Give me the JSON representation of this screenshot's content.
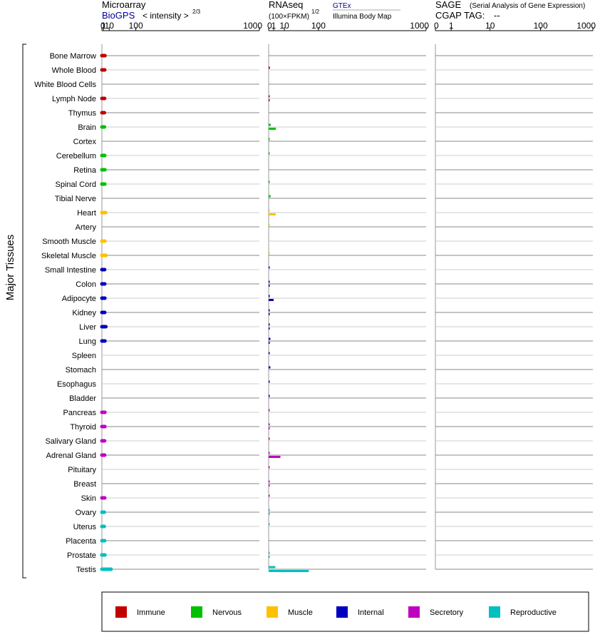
{
  "panels": {
    "microarray": {
      "title": "Microarray",
      "source": "BioGPS",
      "metric": "< intensity >",
      "exponent": "2/3"
    },
    "rnaseq": {
      "title": "RNAseq",
      "metric": "(100×FPKM)",
      "exponent": "1/2",
      "source1": "GTEx",
      "source2": "Illumina Body Map"
    },
    "sage": {
      "title": "SAGE",
      "subtitle": "(Serial Analysis of Gene Expression)",
      "tag_label": "CGAP TAG:",
      "tag_value": "--"
    }
  },
  "y_axis_label": "Major Tissues",
  "colors": {
    "Immune": "#c00000",
    "Nervous": "#00c000",
    "Muscle": "#ffc000",
    "Internal": "#0000c0",
    "Secretory": "#c000c0",
    "Reproductive": "#00c0c0"
  },
  "chart_data": [
    {
      "type": "bar",
      "name": "Microarray",
      "x_scale": "power 2/3",
      "xlim": [
        0,
        1000
      ],
      "x_ticks": [
        "0",
        "1",
        "10",
        "100",
        "1000"
      ],
      "categories": [
        "Bone Marrow",
        "Whole Blood",
        "White Blood Cells",
        "Lymph Node",
        "Thymus",
        "Brain",
        "Cortex",
        "Cerebellum",
        "Retina",
        "Spinal Cord",
        "Tibial Nerve",
        "Heart",
        "Artery",
        "Smooth Muscle",
        "Skeletal Muscle",
        "Small Intestine",
        "Colon",
        "Adipocyte",
        "Kidney",
        "Liver",
        "Lung",
        "Spleen",
        "Stomach",
        "Esophagus",
        "Bladder",
        "Pancreas",
        "Thyroid",
        "Salivary Gland",
        "Adrenal Gland",
        "Pituitary",
        "Breast",
        "Skin",
        "Ovary",
        "Uterus",
        "Placenta",
        "Prostate",
        "Testis"
      ],
      "groups": [
        "Immune",
        "Immune",
        "Immune",
        "Immune",
        "Immune",
        "Nervous",
        "Nervous",
        "Nervous",
        "Nervous",
        "Nervous",
        "Nervous",
        "Muscle",
        "Muscle",
        "Muscle",
        "Muscle",
        "Internal",
        "Internal",
        "Internal",
        "Internal",
        "Internal",
        "Internal",
        "Internal",
        "Internal",
        "Internal",
        "Internal",
        "Secretory",
        "Secretory",
        "Secretory",
        "Secretory",
        "Secretory",
        "Secretory",
        "Secretory",
        "Reproductive",
        "Reproductive",
        "Reproductive",
        "Reproductive",
        "Reproductive"
      ],
      "values": [
        2.7,
        2.4,
        null,
        2.3,
        2.0,
        2.1,
        null,
        2.4,
        2.6,
        2.5,
        null,
        3.7,
        null,
        2.6,
        4.3,
        2.3,
        2.4,
        2.6,
        2.4,
        4.0,
        2.7,
        null,
        null,
        null,
        null,
        2.6,
        2.6,
        2.2,
        2.3,
        null,
        null,
        2.4,
        2.0,
        1.9,
        2.3,
        2.7,
        14
      ]
    },
    {
      "type": "bar",
      "name": "RNAseq",
      "x_scale": "power 1/2",
      "xlim": [
        0,
        1000
      ],
      "x_ticks": [
        "0",
        "1",
        "10",
        "100",
        "1000"
      ],
      "series": [
        {
          "name": "GTEx",
          "values": [
            null,
            0.07,
            null,
            0.01,
            null,
            0.17,
            0.01,
            0.01,
            null,
            0.01,
            0.15,
            0.01,
            0.01,
            null,
            0.01,
            0.01,
            0.01,
            0.01,
            0.01,
            0.01,
            0.12,
            0.01,
            0.12,
            0.01,
            0.01,
            0.01,
            0.01,
            0.01,
            0.01,
            0.01,
            0.01,
            0.01,
            0.01,
            0.01,
            null,
            0.01,
            1.8
          ]
        },
        {
          "name": "Illumina Body Map",
          "values": [
            null,
            null,
            null,
            0.01,
            null,
            2.1,
            null,
            null,
            null,
            null,
            null,
            2.0,
            null,
            null,
            null,
            null,
            0.01,
            1.0,
            0.01,
            0.01,
            0.01,
            null,
            null,
            null,
            null,
            null,
            0.01,
            null,
            5.6,
            null,
            0.01,
            null,
            0.01,
            null,
            null,
            0.01,
            65
          ]
        }
      ]
    },
    {
      "type": "bar",
      "name": "SAGE",
      "x_scale": "log",
      "xlim": [
        0,
        1000
      ],
      "x_ticks": [
        "0",
        "1",
        "10",
        "100",
        "1000"
      ],
      "values": []
    }
  ]
}
